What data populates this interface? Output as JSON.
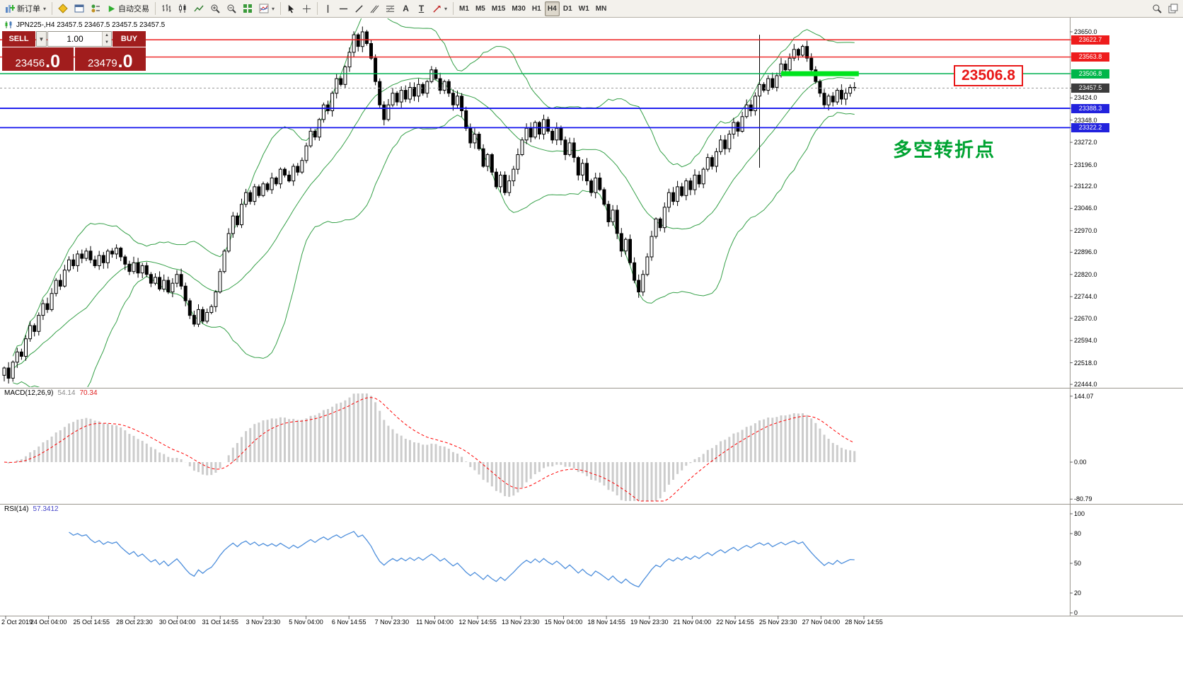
{
  "toolbar": {
    "new_order": "新订单",
    "auto_trading": "自动交易",
    "text_tool": "A",
    "label_tool": "T",
    "timeframes": [
      "M1",
      "M5",
      "M15",
      "M30",
      "H1",
      "H4",
      "D1",
      "W1",
      "MN"
    ],
    "active_timeframe": "H4"
  },
  "chart": {
    "title": "JPN225-,H4  23457.5 23467.5 23457.5 23457.5",
    "annotation": "多空转折点",
    "price_tag": "23506.8"
  },
  "trade_panel": {
    "sell_label": "SELL",
    "buy_label": "BUY",
    "volume": "1.00",
    "sell_price": "23456",
    "sell_price_frac": ".0",
    "buy_price": "23479",
    "buy_price_frac": ".0"
  },
  "chart_data": {
    "type": "candlestick",
    "symbol": "JPN225-",
    "timeframe": "H4",
    "last_quote": {
      "open": 23457.5,
      "high": 23467.5,
      "low": 23457.5,
      "close": 23457.5
    },
    "current_price": 23457.5,
    "candles": {
      "up_color": "#ffffff",
      "down_color": "#000000",
      "closes": [
        22500,
        22465,
        22520,
        22555,
        22540,
        22600,
        22645,
        22625,
        22680,
        22720,
        22700,
        22755,
        22800,
        22780,
        22835,
        22870,
        22850,
        22890,
        22875,
        22900,
        22870,
        22850,
        22885,
        22860,
        22900,
        22890,
        22910,
        22880,
        22855,
        22830,
        22860,
        22825,
        22850,
        22820,
        22790,
        22810,
        22770,
        22800,
        22760,
        22790,
        22820,
        22780,
        22730,
        22680,
        22650,
        22700,
        22660,
        22690,
        22710,
        22760,
        22830,
        22900,
        22960,
        23020,
        22990,
        23060,
        23100,
        23070,
        23120,
        23090,
        23130,
        23110,
        23150,
        23130,
        23180,
        23160,
        23140,
        23190,
        23170,
        23210,
        23260,
        23310,
        23290,
        23350,
        23400,
        23380,
        23440,
        23490,
        23470,
        23530,
        23580,
        23640,
        23600,
        23650,
        23610,
        23560,
        23480,
        23400,
        23350,
        23400,
        23440,
        23410,
        23450,
        23420,
        23460,
        23430,
        23470,
        23440,
        23480,
        23520,
        23490,
        23450,
        23480,
        23440,
        23400,
        23430,
        23380,
        23320,
        23270,
        23300,
        23250,
        23190,
        23230,
        23170,
        23120,
        23160,
        23100,
        23140,
        23180,
        23230,
        23280,
        23320,
        23290,
        23340,
        23300,
        23350,
        23310,
        23280,
        23320,
        23280,
        23230,
        23270,
        23220,
        23160,
        23200,
        23140,
        23100,
        23150,
        23110,
        23060,
        23000,
        23040,
        22960,
        22900,
        22940,
        22860,
        22800,
        22760,
        22820,
        22880,
        22950,
        23010,
        22980,
        23050,
        23100,
        23070,
        23120,
        23090,
        23140,
        23110,
        23160,
        23130,
        23180,
        23220,
        23190,
        23240,
        23280,
        23250,
        23300,
        23340,
        23310,
        23360,
        23400,
        23380,
        23430,
        23470,
        23450,
        23490,
        23460,
        23500,
        23540,
        23520,
        23560,
        23590,
        23570,
        23600,
        23560,
        23520,
        23480,
        23440,
        23400,
        23430,
        23410,
        23450,
        23420,
        23440,
        23460,
        23457.5
      ],
      "overrides": [
        {
          "i": 83,
          "high": 23668
        },
        {
          "i": 147,
          "low": 22740
        },
        {
          "i": 175,
          "high": 23640,
          "low": 23185
        }
      ]
    },
    "bollinger": {
      "period": 20,
      "deviation": 2,
      "color": "#35a048"
    },
    "levels": [
      {
        "price": 23622.7,
        "color": "#ee1c1c",
        "width": 1.4
      },
      {
        "price": 23563.8,
        "color": "#ee1c1c",
        "width": 1.4
      },
      {
        "price": 23506.8,
        "color": "#00b050",
        "width": 1.6
      },
      {
        "price": 23388.3,
        "color": "#1414ee",
        "width": 1.8
      },
      {
        "price": 23322.2,
        "color": "#1414ee",
        "width": 1.8
      }
    ],
    "highlight": {
      "price": 23506.8,
      "from_bar": 180,
      "to_bar": 198,
      "thickness": 7,
      "color": "#00e41e"
    },
    "price_axis": {
      "ticks": [
        "23650.0",
        "23424.0",
        "23348.0",
        "23272.0",
        "23196.0",
        "23122.0",
        "23046.0",
        "22970.0",
        "22896.0",
        "22820.0",
        "22744.0",
        "22670.0",
        "22594.0",
        "22518.0",
        "22444.0"
      ],
      "special": [
        {
          "text": "23622.7",
          "price": 23622.7,
          "bg": "#ee1c1c"
        },
        {
          "text": "23563.8",
          "price": 23563.8,
          "bg": "#ee1c1c"
        },
        {
          "text": "23506.8",
          "price": 23506.8,
          "bg": "#00b64a"
        },
        {
          "text": "23457.5",
          "price": 23457.5,
          "bg": "#3c3c3c"
        },
        {
          "text": "23388.3",
          "price": 23388.3,
          "bg": "#2222dd"
        },
        {
          "text": "23322.2",
          "price": 23322.2,
          "bg": "#2222dd"
        }
      ]
    },
    "macd": {
      "name": "MACD(12,26,9)",
      "v1": "54.14",
      "v2": "70.34",
      "ticks": [
        "144.07",
        "0.00",
        "-80.79"
      ],
      "hist_color": "#cccccc",
      "signal_color": "#ff0000"
    },
    "rsi": {
      "name": "RSI(14)",
      "v1": "57.3412",
      "period": 14,
      "ticks": [
        "100",
        "80",
        "50",
        "20",
        "0"
      ],
      "color": "#4e8fdc"
    },
    "time_labels": [
      "2 Oct 2019",
      "24 Oct 04:00",
      "25 Oct 14:55",
      "28 Oct 23:30",
      "30 Oct 04:00",
      "31 Oct 14:55",
      "3 Nov 23:30",
      "5 Nov 04:00",
      "6 Nov 14:55",
      "7 Nov 23:30",
      "11 Nov 04:00",
      "12 Nov 14:55",
      "13 Nov 23:30",
      "15 Nov 04:00",
      "18 Nov 14:55",
      "19 Nov 23:30",
      "21 Nov 04:00",
      "22 Nov 14:55",
      "25 Nov 23:30",
      "27 Nov 04:00",
      "28 Nov 14:55"
    ]
  }
}
